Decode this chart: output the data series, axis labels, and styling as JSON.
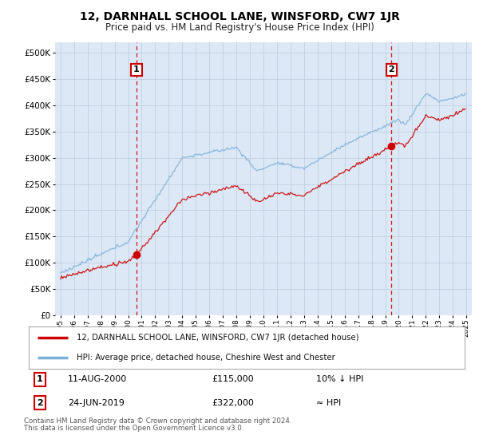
{
  "title": "12, DARNHALL SCHOOL LANE, WINSFORD, CW7 1JR",
  "subtitle": "Price paid vs. HM Land Registry's House Price Index (HPI)",
  "background_color": "#ffffff",
  "plot_bg_color": "#dce8f5",
  "legend_line1": "12, DARNHALL SCHOOL LANE, WINSFORD, CW7 1JR (detached house)",
  "legend_line2": "HPI: Average price, detached house, Cheshire West and Chester",
  "annotation1": {
    "label": "1",
    "date": "11-AUG-2000",
    "price": "£115,000",
    "note": "10% ↓ HPI"
  },
  "annotation2": {
    "label": "2",
    "date": "24-JUN-2019",
    "price": "£322,000",
    "note": "≈ HPI"
  },
  "footnote1": "Contains HM Land Registry data © Crown copyright and database right 2024.",
  "footnote2": "This data is licensed under the Open Government Licence v3.0.",
  "sale1_x": 2000.62,
  "sale1_y": 115000,
  "sale2_x": 2019.47,
  "sale2_y": 322000,
  "ylim": [
    0,
    520000
  ],
  "xlim_start": 1994.6,
  "xlim_end": 2025.4,
  "red_line_color": "#cc0000",
  "blue_line_color": "#7ab0d8",
  "vline_color": "#cc0000",
  "grid_color": "#c0cfe0"
}
